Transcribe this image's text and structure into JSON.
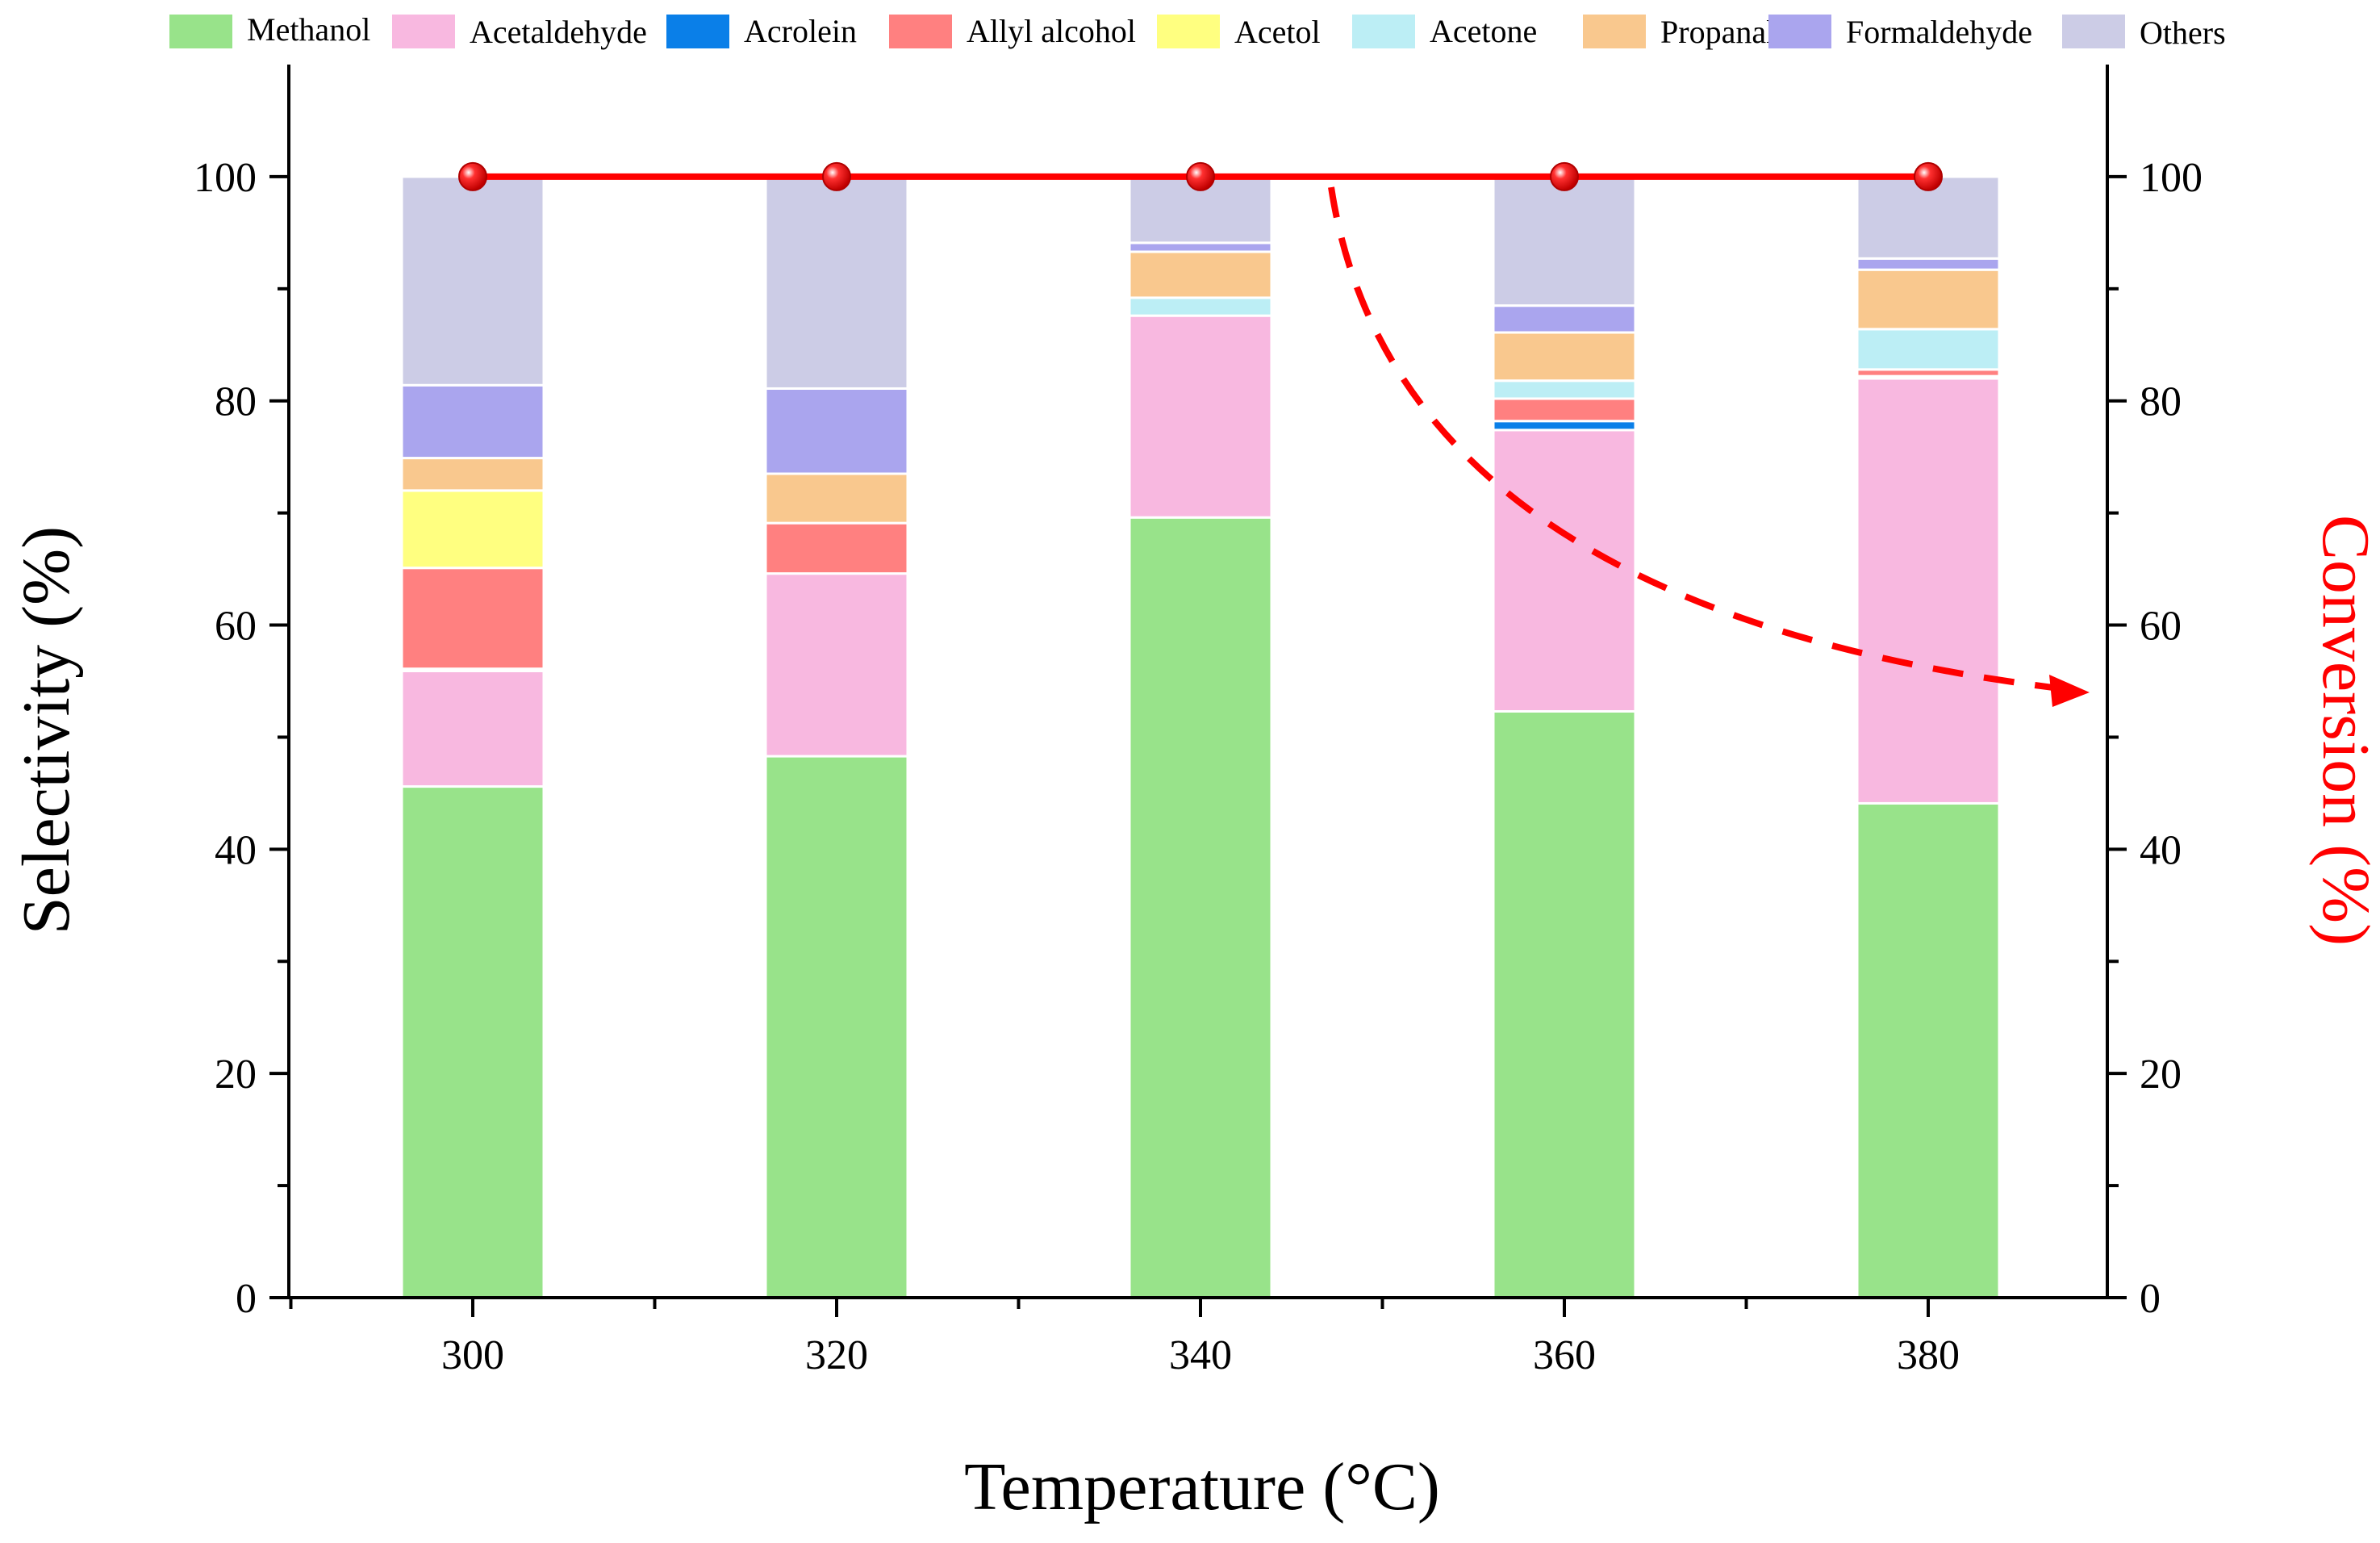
{
  "chart_data": {
    "type": "bar",
    "stacked": true,
    "xlabel": "Temperature (°C)",
    "ylabel": "Selectivity (%)",
    "y2label": "Conversion (%)",
    "categories": [
      "300",
      "320",
      "340",
      "360",
      "380"
    ],
    "ylim": [
      0,
      110
    ],
    "y2lim": [
      0,
      110
    ],
    "yticks": [
      0,
      20,
      40,
      60,
      80,
      100
    ],
    "y2ticks": [
      0,
      20,
      40,
      60,
      80,
      100
    ],
    "series": [
      {
        "name": "Methanol",
        "color": "#98E38A",
        "values": [
          45.6,
          48.3,
          69.6,
          52.3,
          44.1
        ]
      },
      {
        "name": "Acetaldehyde",
        "color": "#F8B8E0",
        "values": [
          10.3,
          16.3,
          18.0,
          25.1,
          37.9
        ]
      },
      {
        "name": "Acrolein",
        "color": "#0A7FE8",
        "values": [
          0.2,
          0.0,
          0.0,
          0.8,
          0.2
        ]
      },
      {
        "name": "Allyl alcohol",
        "color": "#FF8080",
        "values": [
          9.0,
          4.5,
          0.0,
          2.0,
          0.6
        ]
      },
      {
        "name": "Acetol",
        "color": "#FFFF80",
        "values": [
          6.9,
          0.0,
          0.0,
          0.0,
          0.0
        ]
      },
      {
        "name": "Acetone",
        "color": "#BCEEF5",
        "values": [
          0.0,
          0.0,
          1.6,
          1.6,
          3.6
        ]
      },
      {
        "name": "Propanal",
        "color": "#F9C88E",
        "values": [
          2.9,
          4.4,
          4.1,
          4.3,
          5.3
        ]
      },
      {
        "name": "Formaldehyde",
        "color": "#AAA5EE",
        "values": [
          6.5,
          7.6,
          0.8,
          2.4,
          1.0
        ]
      },
      {
        "name": "Others",
        "color": "#CCCCE6",
        "values": [
          18.6,
          18.9,
          5.9,
          11.5,
          7.3
        ]
      }
    ],
    "conversion": {
      "name": "Conversion",
      "color": "#FF0000",
      "values": [
        100,
        100,
        100,
        100,
        100
      ]
    },
    "annotation": "dashed red arrow pointing to the right-hand Conversion axis"
  }
}
